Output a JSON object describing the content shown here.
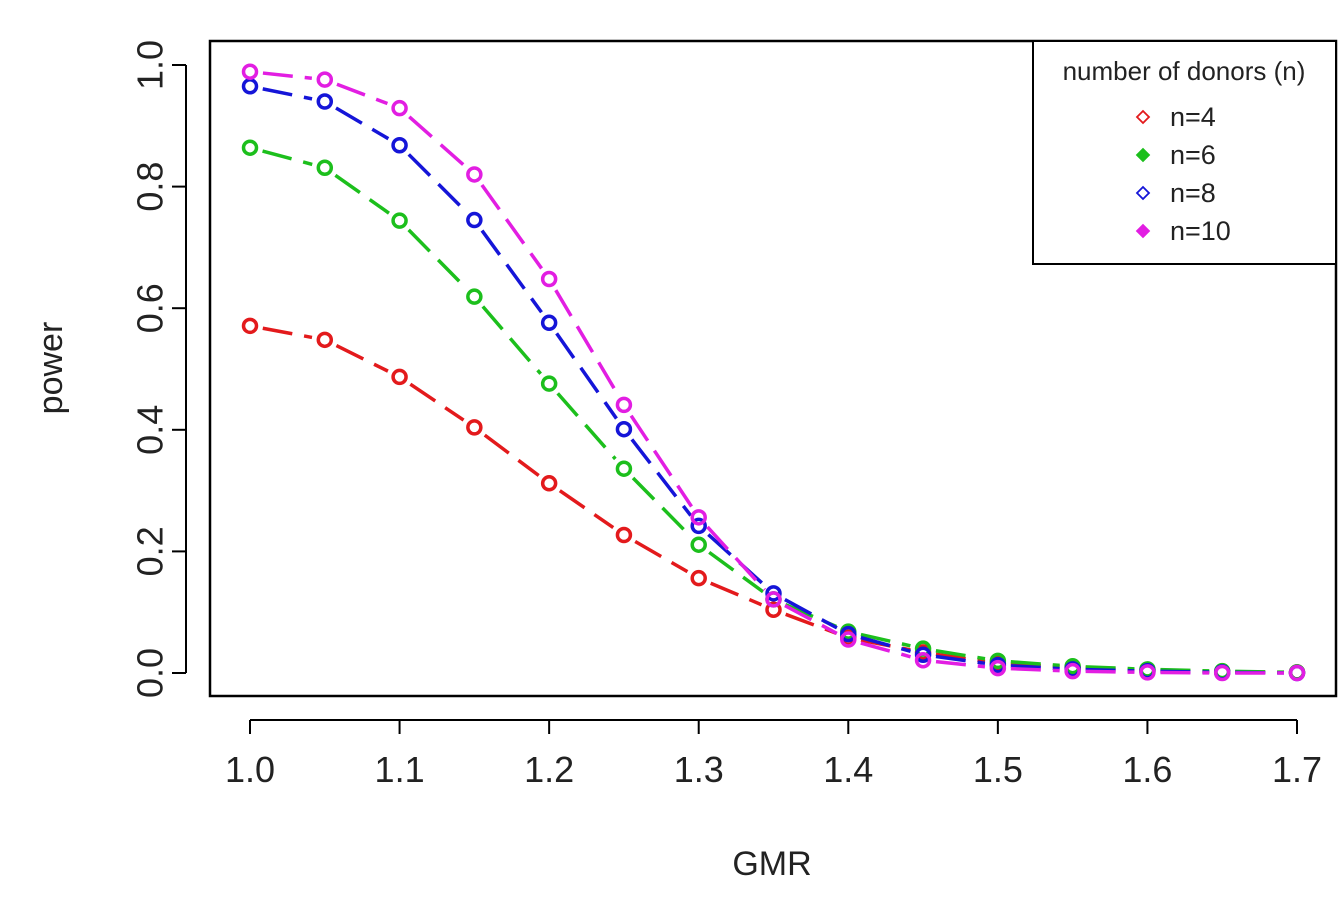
{
  "chart_data": {
    "type": "line",
    "title": "",
    "xlabel": "GMR",
    "ylabel": "power",
    "xlim": [
      1.0,
      1.7
    ],
    "ylim": [
      0.0,
      1.0
    ],
    "x": [
      1.0,
      1.05,
      1.1,
      1.15,
      1.2,
      1.25,
      1.3,
      1.35,
      1.4,
      1.45,
      1.5,
      1.55,
      1.6,
      1.65,
      1.7
    ],
    "x_ticks": [
      "1.0",
      "1.1",
      "1.2",
      "1.3",
      "1.4",
      "1.5",
      "1.6",
      "1.7"
    ],
    "y_ticks": [
      "0.0",
      "0.2",
      "0.4",
      "0.6",
      "0.8",
      "1.0"
    ],
    "grid": false,
    "legend": {
      "title": "number of donors (n)",
      "position": "top-right"
    },
    "series": [
      {
        "name": "n=4",
        "color": "#e31a1c",
        "marker": "open-circle",
        "values": [
          0.571,
          0.548,
          0.487,
          0.404,
          0.312,
          0.227,
          0.156,
          0.104,
          0.058,
          0.034,
          0.016,
          0.009,
          0.004,
          0.002,
          0.001
        ]
      },
      {
        "name": "n=6",
        "color": "#1cbf1c",
        "marker": "filled-diamond",
        "values": [
          0.864,
          0.831,
          0.744,
          0.619,
          0.476,
          0.336,
          0.211,
          0.121,
          0.068,
          0.04,
          0.02,
          0.011,
          0.006,
          0.003,
          0.001
        ]
      },
      {
        "name": "n=8",
        "color": "#1515d8",
        "marker": "open-diamond",
        "values": [
          0.965,
          0.94,
          0.868,
          0.745,
          0.576,
          0.401,
          0.242,
          0.131,
          0.064,
          0.03,
          0.013,
          0.006,
          0.003,
          0.001,
          0.0
        ]
      },
      {
        "name": "n=10",
        "color": "#e21ee2",
        "marker": "filled-diamond",
        "values": [
          0.989,
          0.976,
          0.929,
          0.82,
          0.648,
          0.441,
          0.256,
          0.121,
          0.055,
          0.021,
          0.008,
          0.003,
          0.001,
          0.0,
          0.0
        ]
      }
    ]
  }
}
